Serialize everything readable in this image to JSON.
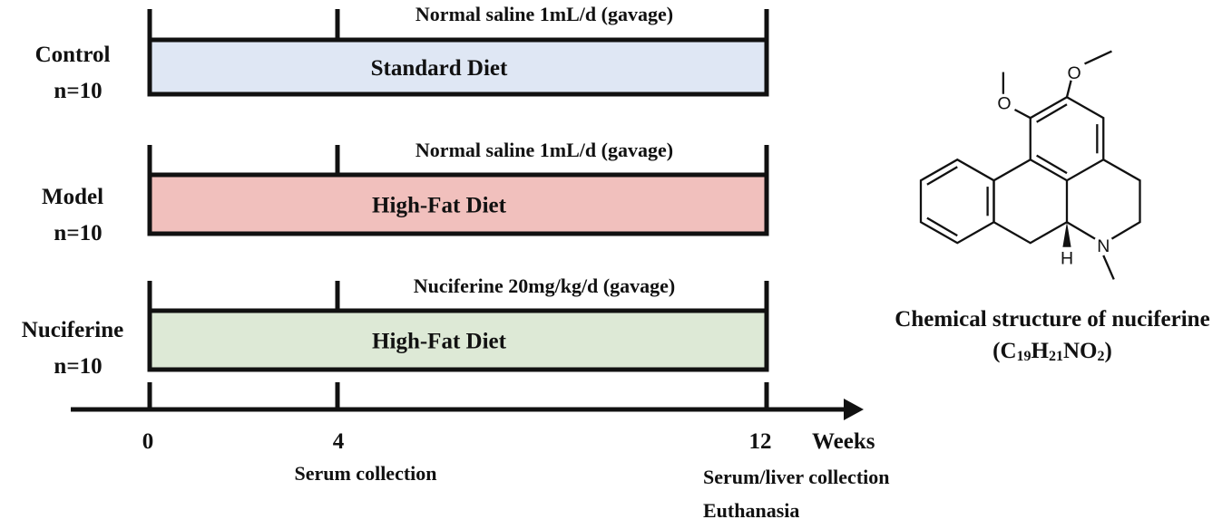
{
  "groups": [
    {
      "name": "Control",
      "n": "n=10",
      "treatment": "Normal saline 1mL/d (gavage)",
      "diet": "Standard Diet",
      "color": "#dfe7f4"
    },
    {
      "name": "Model",
      "n": "n=10",
      "treatment": "Normal saline 1mL/d (gavage)",
      "diet": "High-Fat Diet",
      "color": "#f1c0bd"
    },
    {
      "name": "Nuciferine",
      "n": "n=10",
      "treatment": "Nuciferine 20mg/kg/d (gavage)",
      "diet": "High-Fat Diet",
      "color": "#dde9d6"
    }
  ],
  "timeline": {
    "ticks": [
      "0",
      "4",
      "12"
    ],
    "unit": "Weeks",
    "serum_collection": "Serum collection",
    "end_collection": [
      "Serum/liver collection",
      "Euthanasia"
    ]
  },
  "structure": {
    "atoms": {
      "o1": "O",
      "o2": "O",
      "n": "N",
      "h": "H"
    },
    "caption": "Chemical structure of nuciferine",
    "formula": "(C19H21NO2)"
  }
}
